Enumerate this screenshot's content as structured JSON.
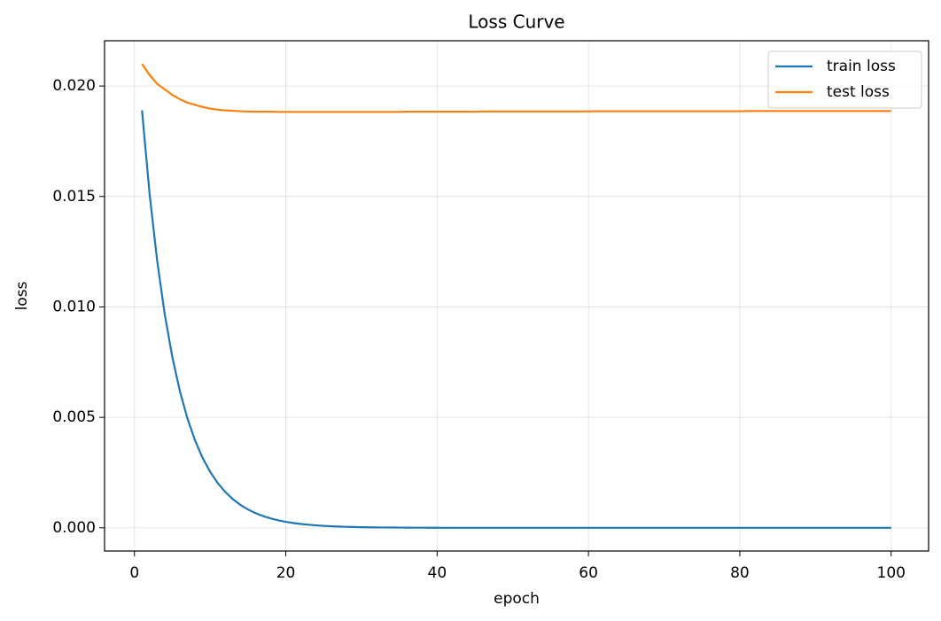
{
  "chart_data": {
    "type": "line",
    "title": "Loss Curve",
    "xlabel": "epoch",
    "ylabel": "loss",
    "x": [
      1,
      2,
      3,
      4,
      5,
      6,
      7,
      8,
      9,
      10,
      11,
      12,
      13,
      14,
      15,
      16,
      17,
      18,
      19,
      20,
      21,
      22,
      23,
      24,
      25,
      26,
      27,
      28,
      29,
      30,
      31,
      32,
      33,
      34,
      35,
      36,
      37,
      38,
      39,
      40,
      41,
      42,
      43,
      44,
      45,
      46,
      47,
      48,
      49,
      50,
      51,
      52,
      53,
      54,
      55,
      56,
      57,
      58,
      59,
      60,
      61,
      62,
      63,
      64,
      65,
      66,
      67,
      68,
      69,
      70,
      71,
      72,
      73,
      74,
      75,
      76,
      77,
      78,
      79,
      80,
      81,
      82,
      83,
      84,
      85,
      86,
      87,
      88,
      89,
      90,
      91,
      92,
      93,
      94,
      95,
      96,
      97,
      98,
      99,
      100
    ],
    "series": [
      {
        "name": "train loss",
        "color": "#1f77b4",
        "values": [
          0.0189,
          0.01512,
          0.012096,
          0.0096768,
          0.0077414,
          0.0061932,
          0.0049545,
          0.0039636,
          0.0031709,
          0.0025367,
          0.0020294,
          0.0016235,
          0.0012988,
          0.001039,
          0.00083123,
          0.00066498,
          0.00053199,
          0.00042559,
          0.00034047,
          0.00027238,
          0.0002179,
          0.00017432,
          0.00013946,
          0.00011157,
          8.9252e-05,
          7.1402e-05,
          5.7121e-05,
          4.5697e-05,
          3.6558e-05,
          2.9246e-05,
          2.34e-05,
          1.87e-05,
          1.5e-05,
          1.2e-05,
          9.6e-06,
          7.7e-06,
          6.1e-06,
          4.9e-06,
          3.9e-06,
          3.1e-06,
          0,
          0,
          0,
          0,
          0,
          0,
          0,
          0,
          0,
          0,
          0,
          0,
          0,
          0,
          0,
          0,
          0,
          0,
          0,
          0,
          0,
          0,
          0,
          0,
          0,
          0,
          0,
          0,
          0,
          0,
          0,
          0,
          0,
          0,
          0,
          0,
          0,
          0,
          0,
          0,
          0,
          0,
          0,
          0,
          0,
          0,
          0,
          0,
          0,
          0,
          0,
          0,
          0,
          0,
          0,
          0,
          0,
          0,
          0,
          0
        ]
      },
      {
        "name": "test loss",
        "color": "#ff7f0e",
        "values": [
          0.021,
          0.0205,
          0.0201,
          0.01985,
          0.0196,
          0.0194,
          0.01925,
          0.01915,
          0.01905,
          0.01898,
          0.01893,
          0.0189,
          0.01888,
          0.01886,
          0.01885,
          0.01884,
          0.01884,
          0.01884,
          0.01883,
          0.01883,
          0.01883,
          0.01883,
          0.01883,
          0.01883,
          0.01883,
          0.01883,
          0.01883,
          0.01883,
          0.01883,
          0.01883,
          0.01883,
          0.01883,
          0.01883,
          0.01883,
          0.01883,
          0.01884,
          0.01884,
          0.01884,
          0.01884,
          0.01884,
          0.01884,
          0.01884,
          0.01884,
          0.01884,
          0.01884,
          0.01885,
          0.01885,
          0.01885,
          0.01885,
          0.01885,
          0.01885,
          0.01885,
          0.01885,
          0.01885,
          0.01885,
          0.01885,
          0.01885,
          0.01885,
          0.01885,
          0.01885,
          0.01886,
          0.01886,
          0.01886,
          0.01886,
          0.01886,
          0.01886,
          0.01886,
          0.01886,
          0.01886,
          0.01886,
          0.01886,
          0.01886,
          0.01886,
          0.01886,
          0.01886,
          0.01886,
          0.01886,
          0.01886,
          0.01886,
          0.01886,
          0.01887,
          0.01887,
          0.01887,
          0.01887,
          0.01887,
          0.01887,
          0.01887,
          0.01887,
          0.01887,
          0.01887,
          0.01887,
          0.01887,
          0.01887,
          0.01887,
          0.01887,
          0.01887,
          0.01887,
          0.01887,
          0.01887,
          0.01887
        ]
      }
    ],
    "xlim": [
      -3.95,
      104.95
    ],
    "xticks": [
      0,
      20,
      40,
      60,
      80,
      100
    ],
    "ylim": [
      -0.00105,
      0.02205
    ],
    "yticks": [
      {
        "value": 0,
        "label": "0.000"
      },
      {
        "value": 0.005,
        "label": "0.005"
      },
      {
        "value": 0.01,
        "label": "0.010"
      },
      {
        "value": 0.015,
        "label": "0.015"
      },
      {
        "value": 0.02,
        "label": "0.020"
      }
    ],
    "grid": true,
    "legend": "upper right"
  }
}
